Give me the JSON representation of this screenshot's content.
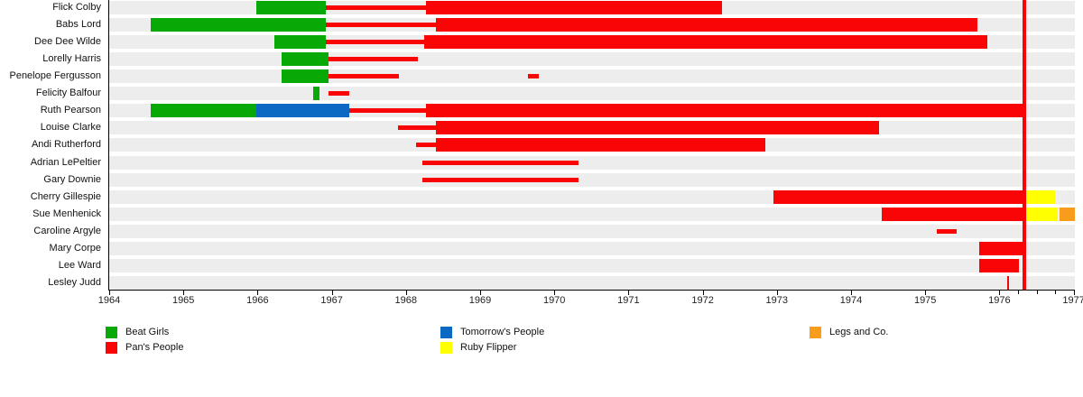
{
  "chart_data": {
    "type": "timeline-gantt",
    "title": "",
    "x_axis": {
      "start": 1964,
      "end": 1977,
      "ticks": [
        1964,
        1965,
        1966,
        1967,
        1968,
        1969,
        1970,
        1971,
        1972,
        1973,
        1974,
        1975,
        1976,
        1977
      ],
      "minor_ticks": [
        1976.25,
        1976.5,
        1976.75
      ],
      "grid": false
    },
    "groups": [
      {
        "id": "beat_girls",
        "label": "Beat Girls",
        "color": "#06a906"
      },
      {
        "id": "pans_people",
        "label": "Pan's People",
        "color": "#fa0505"
      },
      {
        "id": "tomorrows_people",
        "label": "Tomorrow's People",
        "color": "#0b69c4"
      },
      {
        "id": "ruby_flipper",
        "label": "Ruby Flipper",
        "color": "#ffff00"
      },
      {
        "id": "legs_and_co",
        "label": "Legs and Co.",
        "color": "#f89d1b"
      }
    ],
    "marker_line": {
      "year": 1976.34,
      "color": "#fa0505"
    },
    "band_color": "#ededed",
    "rows": [
      {
        "name": "Flick Colby",
        "segments": [
          {
            "group": "beat_girls",
            "start": 1965.98,
            "end": 1966.92,
            "style": "full"
          },
          {
            "group": "pans_people",
            "start": 1966.92,
            "end": 1968.27,
            "style": "thin"
          },
          {
            "group": "pans_people",
            "start": 1968.27,
            "end": 1972.26,
            "style": "full"
          }
        ]
      },
      {
        "name": "Babs Lord",
        "segments": [
          {
            "group": "beat_girls",
            "start": 1964.56,
            "end": 1966.92,
            "style": "full"
          },
          {
            "group": "pans_people",
            "start": 1966.92,
            "end": 1968.4,
            "style": "thin"
          },
          {
            "group": "pans_people",
            "start": 1968.4,
            "end": 1975.7,
            "style": "full"
          }
        ]
      },
      {
        "name": "Dee Dee Wilde",
        "segments": [
          {
            "group": "beat_girls",
            "start": 1966.23,
            "end": 1966.92,
            "style": "full"
          },
          {
            "group": "pans_people",
            "start": 1966.92,
            "end": 1968.25,
            "style": "thin"
          },
          {
            "group": "pans_people",
            "start": 1968.25,
            "end": 1975.84,
            "style": "full"
          }
        ]
      },
      {
        "name": "Lorelly Harris",
        "segments": [
          {
            "group": "beat_girls",
            "start": 1966.32,
            "end": 1966.96,
            "style": "full"
          },
          {
            "group": "pans_people",
            "start": 1966.96,
            "end": 1968.16,
            "style": "thin"
          }
        ]
      },
      {
        "name": "Penelope Fergusson",
        "segments": [
          {
            "group": "beat_girls",
            "start": 1966.32,
            "end": 1966.96,
            "style": "full"
          },
          {
            "group": "pans_people",
            "start": 1966.96,
            "end": 1967.9,
            "style": "thin"
          },
          {
            "group": "pans_people",
            "start": 1969.64,
            "end": 1969.79,
            "style": "thin"
          }
        ]
      },
      {
        "name": "Felicity Balfour",
        "segments": [
          {
            "group": "beat_girls",
            "start": 1966.75,
            "end": 1966.83,
            "style": "full"
          },
          {
            "group": "pans_people",
            "start": 1966.96,
            "end": 1967.24,
            "style": "thin"
          }
        ]
      },
      {
        "name": "Ruth Pearson",
        "segments": [
          {
            "group": "beat_girls",
            "start": 1964.56,
            "end": 1965.98,
            "style": "full"
          },
          {
            "group": "tomorrows_people",
            "start": 1965.98,
            "end": 1967.24,
            "style": "full"
          },
          {
            "group": "pans_people",
            "start": 1967.24,
            "end": 1968.27,
            "style": "thin"
          },
          {
            "group": "pans_people",
            "start": 1968.27,
            "end": 1976.34,
            "style": "full"
          }
        ]
      },
      {
        "name": "Louise Clarke",
        "segments": [
          {
            "group": "pans_people",
            "start": 1967.89,
            "end": 1968.4,
            "style": "thin"
          },
          {
            "group": "pans_people",
            "start": 1968.4,
            "end": 1974.38,
            "style": "full"
          }
        ]
      },
      {
        "name": "Andi Rutherford",
        "segments": [
          {
            "group": "pans_people",
            "start": 1968.14,
            "end": 1968.4,
            "style": "thin"
          },
          {
            "group": "pans_people",
            "start": 1968.4,
            "end": 1972.85,
            "style": "full"
          }
        ]
      },
      {
        "name": "Adrian LePeltier",
        "segments": [
          {
            "group": "pans_people",
            "start": 1968.22,
            "end": 1970.33,
            "style": "thin"
          }
        ]
      },
      {
        "name": "Gary Downie",
        "segments": [
          {
            "group": "pans_people",
            "start": 1968.22,
            "end": 1970.33,
            "style": "thin"
          }
        ]
      },
      {
        "name": "Cherry Gillespie",
        "segments": [
          {
            "group": "pans_people",
            "start": 1972.95,
            "end": 1976.34,
            "style": "full"
          },
          {
            "group": "ruby_flipper",
            "start": 1976.36,
            "end": 1976.75,
            "style": "full"
          }
        ]
      },
      {
        "name": "Sue Menhenick",
        "segments": [
          {
            "group": "pans_people",
            "start": 1974.41,
            "end": 1976.34,
            "style": "full"
          },
          {
            "group": "ruby_flipper",
            "start": 1976.36,
            "end": 1976.79,
            "style": "full"
          },
          {
            "group": "legs_and_co",
            "start": 1976.81,
            "end": 1977.02,
            "style": "full"
          }
        ]
      },
      {
        "name": "Caroline Argyle",
        "segments": [
          {
            "group": "pans_people",
            "start": 1975.16,
            "end": 1975.42,
            "style": "thin"
          }
        ]
      },
      {
        "name": "Mary Corpe",
        "segments": [
          {
            "group": "pans_people",
            "start": 1975.73,
            "end": 1976.32,
            "style": "full"
          }
        ]
      },
      {
        "name": "Lee Ward",
        "segments": [
          {
            "group": "pans_people",
            "start": 1975.73,
            "end": 1976.26,
            "style": "full"
          }
        ]
      },
      {
        "name": "Lesley Judd",
        "segments": [
          {
            "group": "pans_people",
            "start": 1976.11,
            "end": 1976.13,
            "style": "full"
          }
        ]
      }
    ],
    "legend": {
      "columns": [
        [
          "beat_girls",
          "pans_people"
        ],
        [
          "tomorrows_people",
          "ruby_flipper"
        ],
        [
          "legs_and_co"
        ]
      ]
    }
  }
}
